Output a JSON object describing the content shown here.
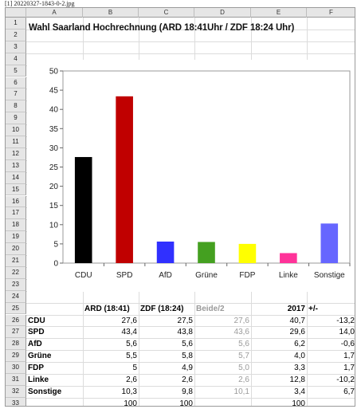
{
  "caption": "[1] 20220327-1843-0-2.jpg",
  "sheet": {
    "columns": [
      "A",
      "B",
      "C",
      "D",
      "E",
      "F"
    ],
    "rows": [
      "1",
      "2",
      "3",
      "4",
      "5",
      "6",
      "7",
      "8",
      "9",
      "10",
      "11",
      "12",
      "13",
      "14",
      "15",
      "16",
      "17",
      "18",
      "19",
      "20",
      "21",
      "22",
      "23",
      "24",
      "25",
      "26",
      "27",
      "28",
      "29",
      "30",
      "31",
      "32",
      "33"
    ],
    "title": "Wahl Saarland Hochrechnung (ARD 18:41Uhr / ZDF 18:24 Uhr)"
  },
  "chart_data": {
    "type": "bar",
    "categories": [
      "CDU",
      "SPD",
      "AfD",
      "Grüne",
      "FDP",
      "Linke",
      "Sonstige"
    ],
    "values": [
      27.6,
      43.4,
      5.6,
      5.5,
      5.0,
      2.6,
      10.3
    ],
    "colors": [
      "#000000",
      "#c00000",
      "#3030ff",
      "#44a020",
      "#ffff00",
      "#ff3399",
      "#6666ff"
    ],
    "ylim": [
      0,
      50
    ],
    "yticks": [
      "0",
      "5",
      "10",
      "15",
      "20",
      "25",
      "30",
      "35",
      "40",
      "45",
      "50"
    ],
    "title": "",
    "xlabel": "",
    "ylabel": "",
    "grid": false
  },
  "table": {
    "headers": [
      "ARD (18:41)",
      "ZDF (18:24)",
      "Beide/2",
      "2017",
      "+/-"
    ],
    "rows": [
      {
        "party": "CDU",
        "ard": "27,6",
        "zdf": "27,5",
        "avg": "27,6",
        "y2017": "40,7",
        "diff": "-13,2"
      },
      {
        "party": "SPD",
        "ard": "43,4",
        "zdf": "43,8",
        "avg": "43,6",
        "y2017": "29,6",
        "diff": "14,0"
      },
      {
        "party": "AfD",
        "ard": "5,6",
        "zdf": "5,6",
        "avg": "5,6",
        "y2017": "6,2",
        "diff": "-0,6"
      },
      {
        "party": "Grüne",
        "ard": "5,5",
        "zdf": "5,8",
        "avg": "5,7",
        "y2017": "4,0",
        "diff": "1,7"
      },
      {
        "party": "FDP",
        "ard": "5",
        "zdf": "4,9",
        "avg": "5,0",
        "y2017": "3,3",
        "diff": "1,7"
      },
      {
        "party": "Linke",
        "ard": "2,6",
        "zdf": "2,6",
        "avg": "2,6",
        "y2017": "12,8",
        "diff": "-10,2"
      },
      {
        "party": "Sonstige",
        "ard": "10,3",
        "zdf": "9,8",
        "avg": "10,1",
        "y2017": "3,4",
        "diff": "6,7"
      }
    ],
    "totals": {
      "ard": "100",
      "zdf": "100",
      "y2017": "100"
    }
  }
}
